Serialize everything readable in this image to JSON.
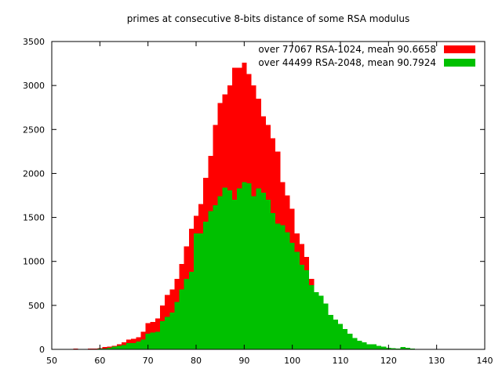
{
  "chart_data": {
    "type": "bar",
    "title": "primes at consecutive 8-bits distance of some RSA modulus",
    "xlabel": "",
    "ylabel": "",
    "xlim": [
      50,
      140
    ],
    "ylim": [
      0,
      3500
    ],
    "xticks": [
      50,
      60,
      70,
      80,
      90,
      100,
      110,
      120,
      130,
      140
    ],
    "yticks": [
      0,
      500,
      1000,
      1500,
      2000,
      2500,
      3000,
      3500
    ],
    "grid": false,
    "legend_position": "top-right",
    "series": [
      {
        "name": "over 77067 RSA-1024, mean 90.6658",
        "color": "#ff0000",
        "x": [
          55,
          56,
          57,
          58,
          59,
          60,
          61,
          62,
          63,
          64,
          65,
          66,
          67,
          68,
          69,
          70,
          71,
          72,
          73,
          74,
          75,
          76,
          77,
          78,
          79,
          80,
          81,
          82,
          83,
          84,
          85,
          86,
          87,
          88,
          89,
          90,
          91,
          92,
          93,
          94,
          95,
          96,
          97,
          98,
          99,
          100,
          101,
          102,
          103,
          104,
          105,
          106,
          107,
          108,
          109,
          110,
          111,
          112,
          113,
          114,
          115,
          116,
          117,
          118,
          119,
          120,
          121,
          122,
          123,
          124,
          125,
          126
        ],
        "values": [
          10,
          5,
          5,
          10,
          10,
          15,
          25,
          30,
          40,
          60,
          80,
          110,
          120,
          140,
          200,
          300,
          310,
          350,
          500,
          620,
          680,
          800,
          970,
          1170,
          1370,
          1520,
          1650,
          1950,
          2200,
          2550,
          2800,
          2900,
          3000,
          3200,
          3200,
          3260,
          3130,
          3000,
          2850,
          2650,
          2550,
          2400,
          2250,
          1900,
          1750,
          1600,
          1320,
          1200,
          1050,
          800,
          650,
          550,
          480,
          350,
          330,
          250,
          200,
          170,
          120,
          100,
          75,
          60,
          50,
          40,
          30,
          20,
          15,
          10,
          5,
          5,
          5,
          2
        ]
      },
      {
        "name": "over 44499 RSA-2048, mean 90.7924",
        "color": "#00c000",
        "x": [
          55,
          56,
          57,
          58,
          59,
          60,
          61,
          62,
          63,
          64,
          65,
          66,
          67,
          68,
          69,
          70,
          71,
          72,
          73,
          74,
          75,
          76,
          77,
          78,
          79,
          80,
          81,
          82,
          83,
          84,
          85,
          86,
          87,
          88,
          89,
          90,
          91,
          92,
          93,
          94,
          95,
          96,
          97,
          98,
          99,
          100,
          101,
          102,
          103,
          104,
          105,
          106,
          107,
          108,
          109,
          110,
          111,
          112,
          113,
          114,
          115,
          116,
          117,
          118,
          119,
          120,
          121,
          122,
          123,
          124,
          125,
          126
        ],
        "values": [
          5,
          3,
          3,
          5,
          5,
          10,
          10,
          20,
          30,
          40,
          50,
          70,
          70,
          90,
          110,
          180,
          190,
          200,
          320,
          370,
          420,
          540,
          680,
          800,
          880,
          1320,
          1320,
          1450,
          1570,
          1640,
          1740,
          1840,
          1810,
          1700,
          1830,
          1900,
          1890,
          1740,
          1830,
          1780,
          1700,
          1550,
          1430,
          1410,
          1330,
          1210,
          1110,
          960,
          900,
          730,
          650,
          610,
          520,
          390,
          340,
          290,
          230,
          180,
          130,
          100,
          80,
          60,
          60,
          40,
          30,
          20,
          15,
          10,
          25,
          20,
          10,
          5
        ]
      }
    ]
  }
}
